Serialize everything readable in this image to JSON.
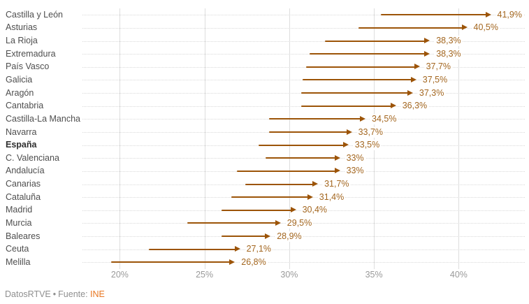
{
  "chart_data": {
    "type": "arrow-dumbbell",
    "unit": "%",
    "orientation": "horizontal",
    "axis": {
      "min": 17.8,
      "max": 43.9,
      "ticks": [
        20,
        25,
        30,
        35,
        40
      ],
      "tick_labels": [
        "20%",
        "25%",
        "30%",
        "35%",
        "40%"
      ]
    },
    "grid": {
      "vertical": "solid",
      "horizontal": "dotted"
    },
    "legend": "none",
    "highlight_category": "España",
    "rows": [
      {
        "label": "Castilla y León",
        "start": 35.4,
        "end": 41.9,
        "value_label": "41,9%",
        "bold": false
      },
      {
        "label": "Asturias",
        "start": 34.1,
        "end": 40.5,
        "value_label": "40,5%",
        "bold": false
      },
      {
        "label": "La Rioja",
        "start": 32.1,
        "end": 38.3,
        "value_label": "38,3%",
        "bold": false
      },
      {
        "label": "Extremadura",
        "start": 31.2,
        "end": 38.3,
        "value_label": "38,3%",
        "bold": false
      },
      {
        "label": "País Vasco",
        "start": 31.0,
        "end": 37.7,
        "value_label": "37,7%",
        "bold": false
      },
      {
        "label": "Galicia",
        "start": 30.8,
        "end": 37.5,
        "value_label": "37,5%",
        "bold": false
      },
      {
        "label": "Aragón",
        "start": 30.7,
        "end": 37.3,
        "value_label": "37,3%",
        "bold": false
      },
      {
        "label": "Cantabria",
        "start": 30.7,
        "end": 36.3,
        "value_label": "36,3%",
        "bold": false
      },
      {
        "label": "Castilla-La Mancha",
        "start": 28.8,
        "end": 34.5,
        "value_label": "34,5%",
        "bold": false
      },
      {
        "label": "Navarra",
        "start": 28.8,
        "end": 33.7,
        "value_label": "33,7%",
        "bold": false
      },
      {
        "label": "España",
        "start": 28.2,
        "end": 33.5,
        "value_label": "33,5%",
        "bold": true
      },
      {
        "label": "C. Valenciana",
        "start": 28.6,
        "end": 33.0,
        "value_label": "33%",
        "bold": false
      },
      {
        "label": "Andalucía",
        "start": 26.9,
        "end": 33.0,
        "value_label": "33%",
        "bold": false
      },
      {
        "label": "Canarias",
        "start": 27.4,
        "end": 31.7,
        "value_label": "31,7%",
        "bold": false
      },
      {
        "label": "Cataluña",
        "start": 26.6,
        "end": 31.4,
        "value_label": "31,4%",
        "bold": false
      },
      {
        "label": "Madrid",
        "start": 26.0,
        "end": 30.4,
        "value_label": "30,4%",
        "bold": false
      },
      {
        "label": "Murcia",
        "start": 24.0,
        "end": 29.5,
        "value_label": "29,5%",
        "bold": false
      },
      {
        "label": "Baleares",
        "start": 26.0,
        "end": 28.9,
        "value_label": "28,9%",
        "bold": false
      },
      {
        "label": "Ceuta",
        "start": 21.7,
        "end": 27.1,
        "value_label": "27,1%",
        "bold": false
      },
      {
        "label": "Melilla",
        "start": 19.5,
        "end": 26.8,
        "value_label": "26,8%",
        "bold": false
      }
    ],
    "colors": {
      "arrow": "#9c5408",
      "value_label": "#a3661f",
      "region_label": "#4e4e4e",
      "highlight_label": "#2e2e2e",
      "axis_label": "#9a9a9a",
      "grid_vertical": "#dedede",
      "grid_horizontal": "#d9d9d9"
    }
  },
  "footer": {
    "brand": "DatosRTVE",
    "separator": "•",
    "source_label": "Fuente:",
    "source_link": "INE",
    "link_color": "#e87722"
  }
}
